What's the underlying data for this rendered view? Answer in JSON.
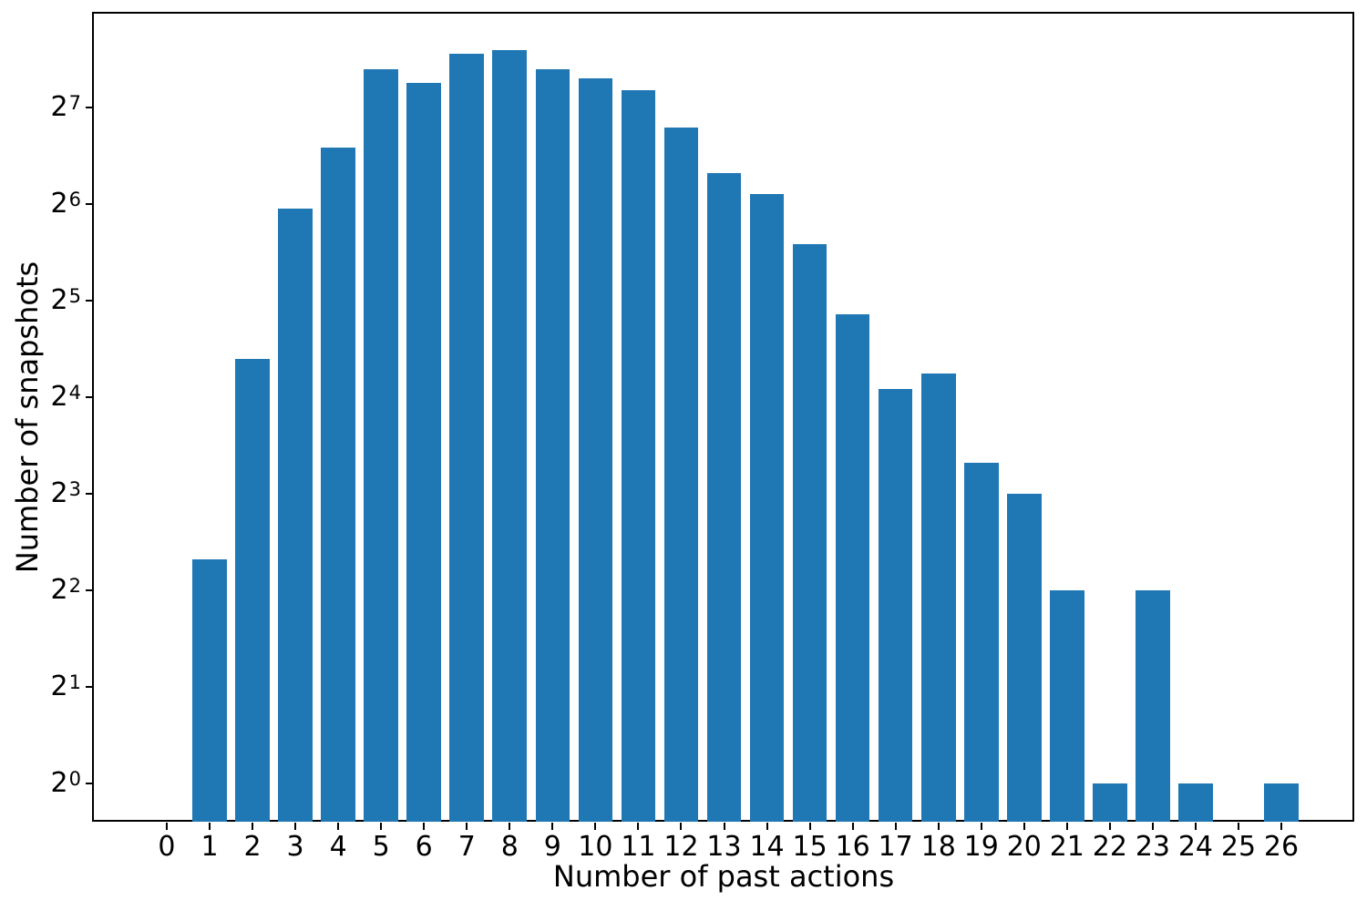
{
  "figure": {
    "background": "#ffffff",
    "spine_color": "#000000",
    "text_color": "#000000"
  },
  "chart_data": {
    "type": "bar",
    "title": "",
    "xlabel": "Number of past actions",
    "ylabel": "Number of snapshots",
    "categories": [
      "0",
      "1",
      "2",
      "3",
      "4",
      "5",
      "6",
      "7",
      "8",
      "9",
      "10",
      "11",
      "12",
      "13",
      "14",
      "15",
      "16",
      "17",
      "18",
      "19",
      "20",
      "21",
      "22",
      "23",
      "24",
      "25",
      "26"
    ],
    "values": [
      0,
      5,
      21,
      62,
      96,
      168,
      153,
      188,
      193,
      168,
      158,
      145,
      111,
      80,
      69,
      48,
      29,
      17,
      19,
      10,
      8,
      4,
      1,
      4,
      1,
      0,
      1
    ],
    "bar_color": "#1f77b4",
    "y_scale": "log2",
    "y_tick_base": "2",
    "y_tick_exponents": [
      0,
      1,
      2,
      3,
      4,
      5,
      6,
      7
    ],
    "ylim_log2": [
      -0.396,
      7.972
    ],
    "xlim_categories": [
      -1.7,
      27.7
    ],
    "bar_rel_width": 0.8,
    "grid": false,
    "legend": null
  }
}
